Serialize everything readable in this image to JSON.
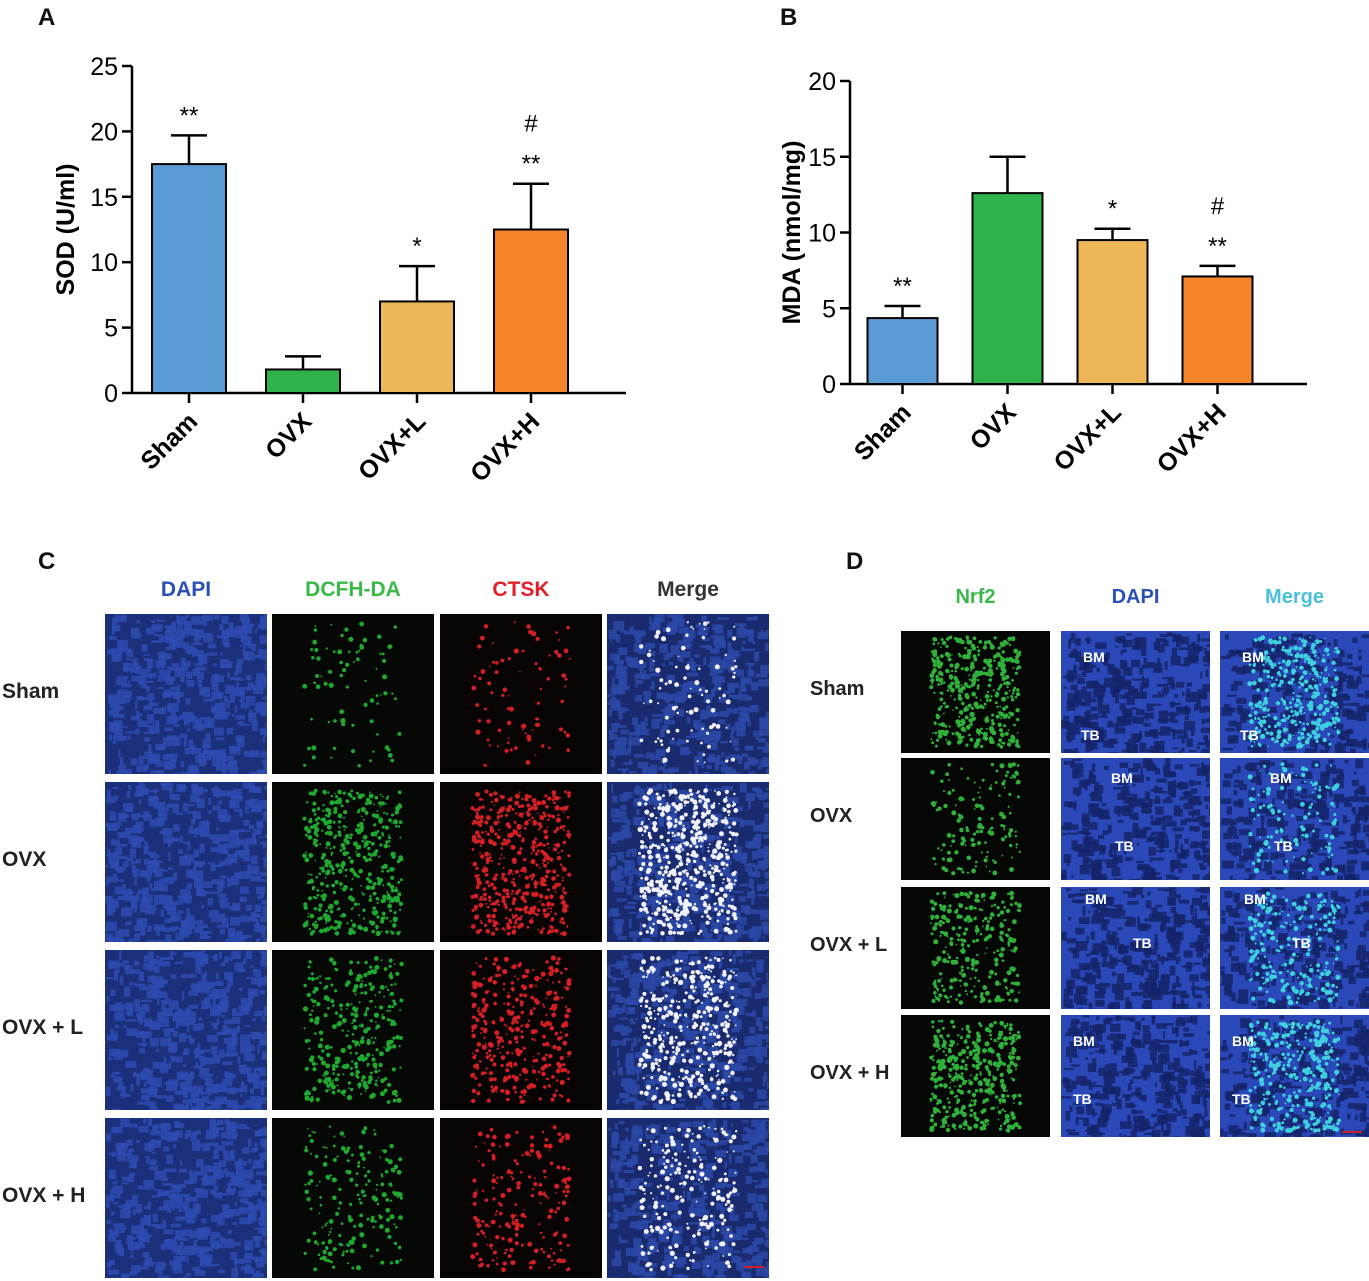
{
  "panels": {
    "a_letter": "A",
    "b_letter": "B",
    "c_letter": "C",
    "d_letter": "D"
  },
  "chart_data": [
    {
      "type": "bar",
      "panel": "A",
      "ylabel": "SOD (U/ml)",
      "xlabel": "",
      "ylim": [
        0,
        25
      ],
      "yticks": [
        "0",
        "5",
        "10",
        "15",
        "20",
        "25"
      ],
      "categories": [
        "Sham",
        "OVX",
        "OVX+L",
        "OVX+H"
      ],
      "values": [
        17.5,
        1.8,
        7.0,
        12.5
      ],
      "errors": [
        2.2,
        1.0,
        2.7,
        3.5
      ],
      "colors": [
        "#5b9bd5",
        "#2db34a",
        "#edb657",
        "#f5842a"
      ],
      "annotations": [
        [
          "**"
        ],
        [],
        [
          "*"
        ],
        [
          "**",
          "#"
        ]
      ],
      "grid": false
    },
    {
      "type": "bar",
      "panel": "B",
      "ylabel": "MDA (nmol/mg)",
      "xlabel": "",
      "ylim": [
        0,
        20
      ],
      "yticks": [
        "0",
        "5",
        "10",
        "15",
        "20"
      ],
      "categories": [
        "Sham",
        "OVX",
        "OVX+L",
        "OVX+H"
      ],
      "values": [
        4.35,
        12.6,
        9.5,
        7.1
      ],
      "errors": [
        0.8,
        2.4,
        0.75,
        0.7
      ],
      "colors": [
        "#5b9bd5",
        "#2db34a",
        "#edb657",
        "#f5842a"
      ],
      "annotations": [
        [
          "**"
        ],
        [],
        [
          "*"
        ],
        [
          "**",
          "#"
        ]
      ],
      "grid": false
    }
  ],
  "panel_c": {
    "columns": [
      "DAPI",
      "DCFH-DA",
      "CTSK",
      "Merge"
    ],
    "column_colors": [
      "#2b50b5",
      "#3bb84a",
      "#e0202a",
      "#333333"
    ],
    "rows": [
      "Sham",
      "OVX",
      "OVX + L",
      "OVX + H"
    ],
    "channel_tints": [
      "#1f3fa6",
      "#1faa2f",
      "#d41f24",
      "#4a6ad0"
    ],
    "signal_level": [
      0.15,
      0.85,
      0.6,
      0.35
    ]
  },
  "panel_d": {
    "columns": [
      "Nrf2",
      "DAPI",
      "Merge"
    ],
    "column_colors": [
      "#3bb84a",
      "#2b50b5",
      "#4ac0d8"
    ],
    "rows": [
      "Sham",
      "OVX",
      "OVX + L",
      "OVX + H"
    ],
    "labels_bm": "BM",
    "labels_tb": "TB",
    "signal_level": [
      0.85,
      0.3,
      0.55,
      0.8
    ]
  }
}
